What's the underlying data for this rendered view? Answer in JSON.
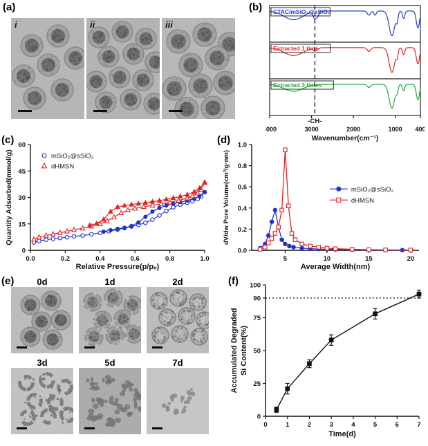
{
  "panels": {
    "a": {
      "label": "(a)",
      "images": [
        {
          "tag": "i"
        },
        {
          "tag": "ii"
        },
        {
          "tag": "iii"
        }
      ]
    },
    "b": {
      "label": "(b)"
    },
    "c": {
      "label": "(c)"
    },
    "d": {
      "label": "(d)"
    },
    "e": {
      "label": "(e)",
      "images": [
        {
          "tag": "0d"
        },
        {
          "tag": "1d"
        },
        {
          "tag": "2d"
        },
        {
          "tag": "3d"
        },
        {
          "tag": "5d"
        },
        {
          "tag": "7d"
        }
      ]
    },
    "f": {
      "label": "(f)"
    }
  },
  "chart_data": [
    {
      "id": "ftir",
      "type": "line",
      "panel": "b",
      "xlabel": "Wavenumber(cm⁻¹)",
      "x_range": [
        4000,
        400
      ],
      "x_reversed": true,
      "xticks": {
        "values": [
          4000,
          3000,
          2000,
          1000,
          400
        ],
        "labels": [
          "4000",
          "3000",
          "2000",
          "1000",
          "400"
        ]
      },
      "baseline_transmittance": 0.93,
      "guide_x": 2920,
      "annotation": "-CH-",
      "series": [
        {
          "name": "CTAC/mSiO₂@sSiO₂",
          "color": "#2040c0",
          "bands": [
            [
              3430,
              320,
              0.3
            ],
            [
              2920,
              50,
              0.26
            ],
            [
              2850,
              38,
              0.16
            ],
            [
              1630,
              55,
              0.14
            ],
            [
              1480,
              38,
              0.14
            ],
            [
              1080,
              95,
              0.85
            ],
            [
              955,
              32,
              0.28
            ],
            [
              800,
              38,
              0.26
            ],
            [
              460,
              55,
              0.58
            ]
          ]
        },
        {
          "name": "Extracted 1 time",
          "color": "#e02222",
          "bands": [
            [
              3430,
              320,
              0.27
            ],
            [
              2920,
              50,
              0.1
            ],
            [
              2850,
              38,
              0.05
            ],
            [
              1630,
              55,
              0.13
            ],
            [
              1080,
              95,
              0.85
            ],
            [
              955,
              32,
              0.25
            ],
            [
              800,
              38,
              0.25
            ],
            [
              460,
              55,
              0.56
            ]
          ]
        },
        {
          "name": "Extracted 3 times",
          "color": "#1faa3c",
          "bands": [
            [
              3430,
              320,
              0.24
            ],
            [
              2920,
              50,
              0.03
            ],
            [
              1630,
              55,
              0.11
            ],
            [
              1080,
              95,
              0.82
            ],
            [
              955,
              32,
              0.21
            ],
            [
              800,
              38,
              0.23
            ],
            [
              460,
              55,
              0.53
            ]
          ]
        }
      ]
    },
    {
      "id": "isotherm",
      "type": "scatter-line",
      "panel": "c",
      "xlabel": "Relative Pressure(p/pₒ)",
      "ylabel": "Quantity Adsorbed(mmol/g)",
      "xlim": [
        0,
        1.0
      ],
      "ylim": [
        0,
        60
      ],
      "xticks": {
        "values": [
          0,
          0.2,
          0.4,
          0.6,
          0.8,
          1.0
        ],
        "labels": [
          "0.0",
          "0.2",
          "0.4",
          "0.6",
          "0.8",
          "1.0"
        ]
      },
      "yticks": {
        "values": [
          0,
          15,
          30,
          45,
          60
        ],
        "labels": [
          "0",
          "15",
          "30",
          "45",
          "60"
        ]
      },
      "legend_position": "top-left",
      "series": [
        {
          "name": "mSiO₂@sSiO₂",
          "color": "#2233cc",
          "marker": "circle",
          "adsorption": [
            [
              0.02,
              4.5
            ],
            [
              0.05,
              5.3
            ],
            [
              0.09,
              6.0
            ],
            [
              0.13,
              6.5
            ],
            [
              0.17,
              7.0
            ],
            [
              0.21,
              7.4
            ],
            [
              0.25,
              7.9
            ],
            [
              0.3,
              8.4
            ],
            [
              0.35,
              9.1
            ],
            [
              0.4,
              9.9
            ],
            [
              0.45,
              10.8
            ],
            [
              0.5,
              11.8
            ],
            [
              0.54,
              12.6
            ],
            [
              0.58,
              13.5
            ],
            [
              0.62,
              14.4
            ],
            [
              0.66,
              15.6
            ],
            [
              0.7,
              17.4
            ],
            [
              0.74,
              19.8
            ],
            [
              0.78,
              22.3
            ],
            [
              0.82,
              24.4
            ],
            [
              0.86,
              25.9
            ],
            [
              0.9,
              27.0
            ],
            [
              0.93,
              27.9
            ],
            [
              0.96,
              29.0
            ],
            [
              0.98,
              30.5
            ],
            [
              1.0,
              33.0
            ]
          ],
          "desorption": [
            [
              1.0,
              33.0
            ],
            [
              0.97,
              30.8
            ],
            [
              0.94,
              29.2
            ],
            [
              0.9,
              28.2
            ],
            [
              0.86,
              27.3
            ],
            [
              0.82,
              26.4
            ],
            [
              0.78,
              25.4
            ],
            [
              0.74,
              24.0
            ],
            [
              0.7,
              22.0
            ],
            [
              0.66,
              19.0
            ],
            [
              0.62,
              15.8
            ],
            [
              0.58,
              13.8
            ],
            [
              0.54,
              12.8
            ],
            [
              0.5,
              12.2
            ],
            [
              0.46,
              11.4
            ],
            [
              0.42,
              10.6
            ]
          ]
        },
        {
          "name": "dHMSN",
          "color": "#e02222",
          "marker": "triangle",
          "adsorption": [
            [
              0.02,
              6.2
            ],
            [
              0.05,
              7.4
            ],
            [
              0.09,
              8.4
            ],
            [
              0.13,
              9.2
            ],
            [
              0.17,
              10.0
            ],
            [
              0.21,
              10.8
            ],
            [
              0.25,
              11.6
            ],
            [
              0.3,
              12.5
            ],
            [
              0.35,
              13.6
            ],
            [
              0.4,
              15.0
            ],
            [
              0.44,
              16.6
            ],
            [
              0.48,
              18.8
            ],
            [
              0.52,
              21.2
            ],
            [
              0.56,
              22.8
            ],
            [
              0.6,
              23.8
            ],
            [
              0.65,
              24.7
            ],
            [
              0.7,
              25.5
            ],
            [
              0.75,
              26.3
            ],
            [
              0.8,
              27.2
            ],
            [
              0.85,
              28.3
            ],
            [
              0.9,
              29.6
            ],
            [
              0.93,
              30.8
            ],
            [
              0.96,
              32.4
            ],
            [
              0.98,
              34.5
            ],
            [
              1.0,
              38.5
            ]
          ],
          "desorption": [
            [
              1.0,
              38.5
            ],
            [
              0.97,
              35.2
            ],
            [
              0.94,
              33.2
            ],
            [
              0.9,
              31.6
            ],
            [
              0.86,
              30.6
            ],
            [
              0.82,
              29.7
            ],
            [
              0.78,
              28.9
            ],
            [
              0.74,
              28.2
            ],
            [
              0.7,
              27.6
            ],
            [
              0.66,
              27.0
            ],
            [
              0.62,
              26.5
            ],
            [
              0.58,
              26.0
            ],
            [
              0.54,
              25.4
            ],
            [
              0.5,
              24.6
            ],
            [
              0.46,
              22.0
            ],
            [
              0.42,
              17.5
            ],
            [
              0.38,
              15.2
            ],
            [
              0.34,
              14.2
            ]
          ]
        }
      ]
    },
    {
      "id": "pore",
      "type": "scatter-line",
      "panel": "d",
      "xlabel": "Average Width(nm)",
      "ylabel": "dV/dw Pore Volume(cm³/g·nm)",
      "xlim": [
        1,
        21
      ],
      "ylim": [
        0,
        1.0
      ],
      "xticks": {
        "values": [
          5,
          10,
          15,
          20
        ],
        "labels": [
          "5",
          "10",
          "15",
          "20"
        ]
      },
      "yticks": {
        "values": [
          0,
          0.2,
          0.4,
          0.6,
          0.8,
          1.0
        ],
        "labels": [
          "0.0",
          "0.2",
          "0.4",
          "0.6",
          "0.8",
          "1.0"
        ]
      },
      "legend_position": "right",
      "series": [
        {
          "name": "mSiO₂@sSiO₂",
          "color": "#2233cc",
          "marker": "circle",
          "filled": true,
          "points": [
            [
              2,
              0.02
            ],
            [
              2.6,
              0.06
            ],
            [
              3.0,
              0.14
            ],
            [
              3.4,
              0.27
            ],
            [
              3.8,
              0.38
            ],
            [
              4.2,
              0.22
            ],
            [
              4.6,
              0.1
            ],
            [
              5.0,
              0.06
            ],
            [
              5.5,
              0.04
            ],
            [
              6,
              0.03
            ],
            [
              7,
              0.02
            ],
            [
              8,
              0.015
            ],
            [
              9,
              0.012
            ],
            [
              10,
              0.01
            ],
            [
              11,
              0.008
            ],
            [
              13,
              0.006
            ],
            [
              15,
              0.004
            ],
            [
              17,
              0.003
            ],
            [
              19,
              0.002
            ]
          ]
        },
        {
          "name": "dHMSN",
          "color": "#e02222",
          "marker": "square",
          "filled": false,
          "points": [
            [
              2,
              0.01
            ],
            [
              2.6,
              0.03
            ],
            [
              3.0,
              0.07
            ],
            [
              3.4,
              0.11
            ],
            [
              3.8,
              0.16
            ],
            [
              4.2,
              0.22
            ],
            [
              4.6,
              0.38
            ],
            [
              5.0,
              0.95
            ],
            [
              5.4,
              0.42
            ],
            [
              5.8,
              0.16
            ],
            [
              6.2,
              0.1
            ],
            [
              7,
              0.06
            ],
            [
              8,
              0.04
            ],
            [
              9,
              0.03
            ],
            [
              10,
              0.02
            ],
            [
              11,
              0.015
            ],
            [
              13,
              0.01
            ],
            [
              15,
              0.006
            ],
            [
              17,
              0.004
            ],
            [
              20,
              0.003
            ]
          ]
        }
      ]
    },
    {
      "id": "degradation",
      "type": "line",
      "panel": "f",
      "xlabel": "Time(d)",
      "ylabel_lines": [
        "Accumulated Degraded",
        "Si Content(%)"
      ],
      "xlim": [
        0,
        7
      ],
      "ylim": [
        0,
        100
      ],
      "xticks": {
        "values": [
          0,
          1,
          2,
          3,
          4,
          5,
          6,
          7
        ],
        "labels": [
          "0",
          "1",
          "2",
          "3",
          "4",
          "5",
          "6",
          "7"
        ]
      },
      "yticks": {
        "values": [
          0,
          25,
          50,
          75,
          90,
          100
        ],
        "labels": [
          "0",
          "25",
          "50",
          "75",
          "90",
          "100"
        ]
      },
      "reference_line_y": 90,
      "series": [
        {
          "name": "Accumulated Degraded Si Content",
          "color": "#111111",
          "marker": "square",
          "filled": true,
          "points": [
            [
              0.5,
              5
            ],
            [
              1,
              21
            ],
            [
              2,
              40
            ],
            [
              3,
              58
            ],
            [
              5,
              78
            ],
            [
              7,
              93
            ]
          ],
          "errors": [
            2,
            4,
            3,
            4,
            4,
            3
          ]
        }
      ]
    }
  ]
}
